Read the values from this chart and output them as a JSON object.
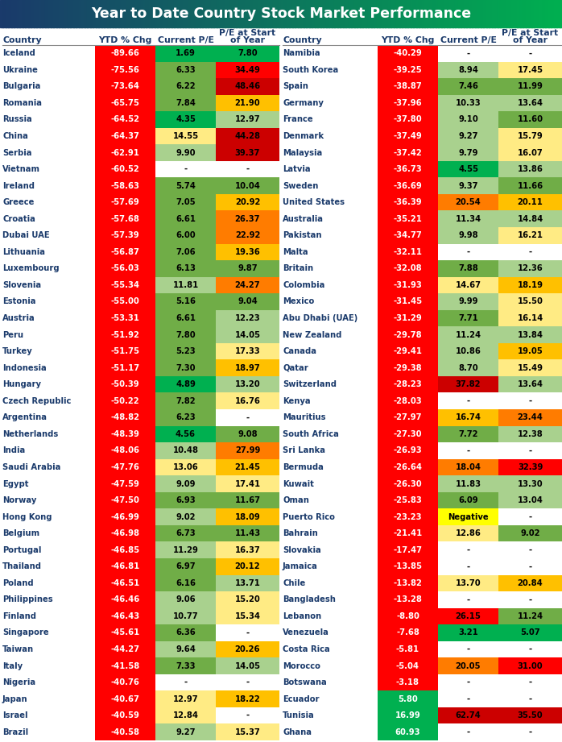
{
  "title": "Year to Date Country Stock Market Performance",
  "left_data": [
    [
      "Iceland",
      "-89.66",
      "1.69",
      "7.80"
    ],
    [
      "Ukraine",
      "-75.56",
      "6.33",
      "34.49"
    ],
    [
      "Bulgaria",
      "-73.64",
      "6.22",
      "48.46"
    ],
    [
      "Romania",
      "-65.75",
      "7.84",
      "21.90"
    ],
    [
      "Russia",
      "-64.52",
      "4.35",
      "12.97"
    ],
    [
      "China",
      "-64.37",
      "14.55",
      "44.28"
    ],
    [
      "Serbia",
      "-62.91",
      "9.90",
      "39.37"
    ],
    [
      "Vietnam",
      "-60.52",
      "-",
      "-"
    ],
    [
      "Ireland",
      "-58.63",
      "5.74",
      "10.04"
    ],
    [
      "Greece",
      "-57.69",
      "7.05",
      "20.92"
    ],
    [
      "Croatia",
      "-57.68",
      "6.61",
      "26.37"
    ],
    [
      "Dubai UAE",
      "-57.39",
      "6.00",
      "22.92"
    ],
    [
      "Lithuania",
      "-56.87",
      "7.06",
      "19.36"
    ],
    [
      "Luxembourg",
      "-56.03",
      "6.13",
      "9.87"
    ],
    [
      "Slovenia",
      "-55.34",
      "11.81",
      "24.27"
    ],
    [
      "Estonia",
      "-55.00",
      "5.16",
      "9.04"
    ],
    [
      "Austria",
      "-53.31",
      "6.61",
      "12.23"
    ],
    [
      "Peru",
      "-51.92",
      "7.80",
      "14.05"
    ],
    [
      "Turkey",
      "-51.75",
      "5.23",
      "17.33"
    ],
    [
      "Indonesia",
      "-51.17",
      "7.30",
      "18.97"
    ],
    [
      "Hungary",
      "-50.39",
      "4.89",
      "13.20"
    ],
    [
      "Czech Republic",
      "-50.22",
      "7.82",
      "16.76"
    ],
    [
      "Argentina",
      "-48.82",
      "6.23",
      "-"
    ],
    [
      "Netherlands",
      "-48.39",
      "4.56",
      "9.08"
    ],
    [
      "India",
      "-48.06",
      "10.48",
      "27.99"
    ],
    [
      "Saudi Arabia",
      "-47.76",
      "13.06",
      "21.45"
    ],
    [
      "Egypt",
      "-47.59",
      "9.09",
      "17.41"
    ],
    [
      "Norway",
      "-47.50",
      "6.93",
      "11.67"
    ],
    [
      "Hong Kong",
      "-46.99",
      "9.02",
      "18.09"
    ],
    [
      "Belgium",
      "-46.98",
      "6.73",
      "11.43"
    ],
    [
      "Portugal",
      "-46.85",
      "11.29",
      "16.37"
    ],
    [
      "Thailand",
      "-46.81",
      "6.97",
      "20.12"
    ],
    [
      "Poland",
      "-46.51",
      "6.16",
      "13.71"
    ],
    [
      "Philippines",
      "-46.46",
      "9.06",
      "15.20"
    ],
    [
      "Finland",
      "-46.43",
      "10.77",
      "15.34"
    ],
    [
      "Singapore",
      "-45.61",
      "6.36",
      "-"
    ],
    [
      "Taiwan",
      "-44.27",
      "9.64",
      "20.26"
    ],
    [
      "Italy",
      "-41.58",
      "7.33",
      "14.05"
    ],
    [
      "Nigeria",
      "-40.76",
      "-",
      "-"
    ],
    [
      "Japan",
      "-40.67",
      "12.97",
      "18.22"
    ],
    [
      "Israel",
      "-40.59",
      "12.84",
      "-"
    ],
    [
      "Brazil",
      "-40.58",
      "9.27",
      "15.37"
    ]
  ],
  "right_data": [
    [
      "Namibia",
      "-40.29",
      "-",
      "-"
    ],
    [
      "South Korea",
      "-39.25",
      "8.94",
      "17.45"
    ],
    [
      "Spain",
      "-38.87",
      "7.46",
      "11.99"
    ],
    [
      "Germany",
      "-37.96",
      "10.33",
      "13.64"
    ],
    [
      "France",
      "-37.80",
      "9.10",
      "11.60"
    ],
    [
      "Denmark",
      "-37.49",
      "9.27",
      "15.79"
    ],
    [
      "Malaysia",
      "-37.42",
      "9.79",
      "16.07"
    ],
    [
      "Latvia",
      "-36.73",
      "4.55",
      "13.86"
    ],
    [
      "Sweden",
      "-36.69",
      "9.37",
      "11.66"
    ],
    [
      "United States",
      "-36.39",
      "20.54",
      "20.11"
    ],
    [
      "Australia",
      "-35.21",
      "11.34",
      "14.84"
    ],
    [
      "Pakistan",
      "-34.77",
      "9.98",
      "16.21"
    ],
    [
      "Malta",
      "-32.11",
      "-",
      "-"
    ],
    [
      "Britain",
      "-32.08",
      "7.88",
      "12.36"
    ],
    [
      "Colombia",
      "-31.93",
      "14.67",
      "18.19"
    ],
    [
      "Mexico",
      "-31.45",
      "9.99",
      "15.50"
    ],
    [
      "Abu Dhabi (UAE)",
      "-31.29",
      "7.71",
      "16.14"
    ],
    [
      "New Zealand",
      "-29.78",
      "11.24",
      "13.84"
    ],
    [
      "Canada",
      "-29.41",
      "10.86",
      "19.05"
    ],
    [
      "Qatar",
      "-29.38",
      "8.70",
      "15.49"
    ],
    [
      "Switzerland",
      "-28.23",
      "37.82",
      "13.64"
    ],
    [
      "Kenya",
      "-28.03",
      "-",
      "-"
    ],
    [
      "Mauritius",
      "-27.97",
      "16.74",
      "23.44"
    ],
    [
      "South Africa",
      "-27.30",
      "7.72",
      "12.38"
    ],
    [
      "Sri Lanka",
      "-26.93",
      "-",
      "-"
    ],
    [
      "Bermuda",
      "-26.64",
      "18.04",
      "32.39"
    ],
    [
      "Kuwait",
      "-26.30",
      "11.83",
      "13.30"
    ],
    [
      "Oman",
      "-25.83",
      "6.09",
      "13.04"
    ],
    [
      "Puerto Rico",
      "-23.23",
      "Negative",
      "-"
    ],
    [
      "Bahrain",
      "-21.41",
      "12.86",
      "9.02"
    ],
    [
      "Slovakia",
      "-17.47",
      "-",
      "-"
    ],
    [
      "Jamaica",
      "-13.85",
      "-",
      "-"
    ],
    [
      "Chile",
      "-13.82",
      "13.70",
      "20.84"
    ],
    [
      "Bangladesh",
      "-13.28",
      "-",
      "-"
    ],
    [
      "Lebanon",
      "-8.80",
      "26.15",
      "11.24"
    ],
    [
      "Venezuela",
      "-7.68",
      "3.21",
      "5.07"
    ],
    [
      "Costa Rica",
      "-5.81",
      "-",
      "-"
    ],
    [
      "Morocco",
      "-5.04",
      "20.05",
      "31.00"
    ],
    [
      "Botswana",
      "-3.18",
      "-",
      "-"
    ],
    [
      "Ecuador",
      "5.80",
      "-",
      "-"
    ],
    [
      "Tunisia",
      "16.99",
      "62.74",
      "35.50"
    ],
    [
      "Ghana",
      "60.93",
      "-",
      "-"
    ]
  ]
}
